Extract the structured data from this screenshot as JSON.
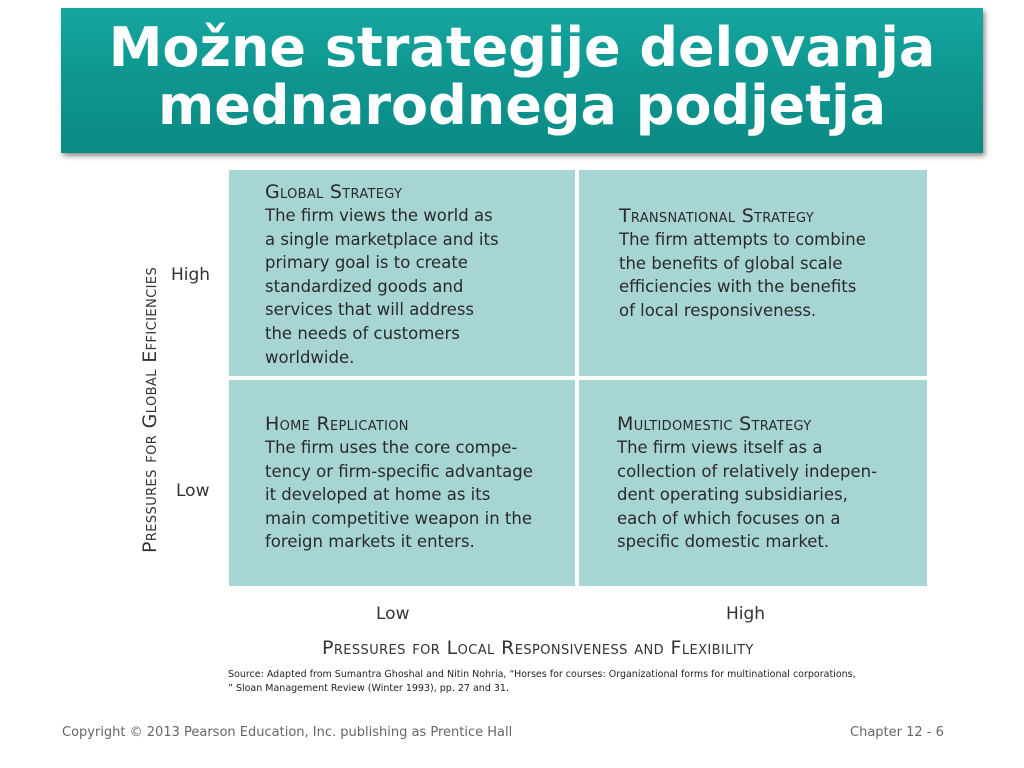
{
  "title": {
    "line1": "Možne strategije delovanja",
    "line2": "mednarodnega podjetja"
  },
  "matrix": {
    "cells": [
      {
        "heading": "Global Strategy",
        "body": "The firm views the world as\na single marketplace and its\nprimary goal is to create\nstandardized goods and\nservices that will address\nthe needs of customers\nworldwide."
      },
      {
        "heading": "Transnational Strategy",
        "body": "The firm attempts to combine\nthe benefits of global scale\nefficiencies with the benefits\nof local responsiveness."
      },
      {
        "heading": "Home Replication",
        "body": "The firm uses the core compe-\ntency or firm-specific advantage\nit developed at home as its\nmain competitive weapon in the\nforeign markets it enters."
      },
      {
        "heading": "Multidomestic Strategy",
        "body": "The firm views itself as a\ncollection of relatively indepen-\ndent operating subsidiaries,\neach of which focuses on a\nspecific domestic market."
      }
    ],
    "cell_color": "#a6d5d3"
  },
  "y_axis": {
    "label": "Pressures for Global Efficiencies",
    "high": "High",
    "low": "Low"
  },
  "x_axis": {
    "label": "Pressures for Local Responsiveness and Flexibility",
    "low": "Low",
    "high": "High"
  },
  "source": "Source: Adapted from Sumantra Ghoshal and Nitin Nohria, “Horses for courses: Organizational forms for multinational corporations,\n” Sloan Management Review (Winter 1993), pp. 27 and 31.",
  "footer": {
    "copyright": "Copyright © 2013 Pearson Education, Inc. publishing as Prentice Hall",
    "chapter": "Chapter  12  -   6"
  },
  "colors": {
    "title_bar": "#0e958f",
    "title_text": "#ffffff"
  }
}
